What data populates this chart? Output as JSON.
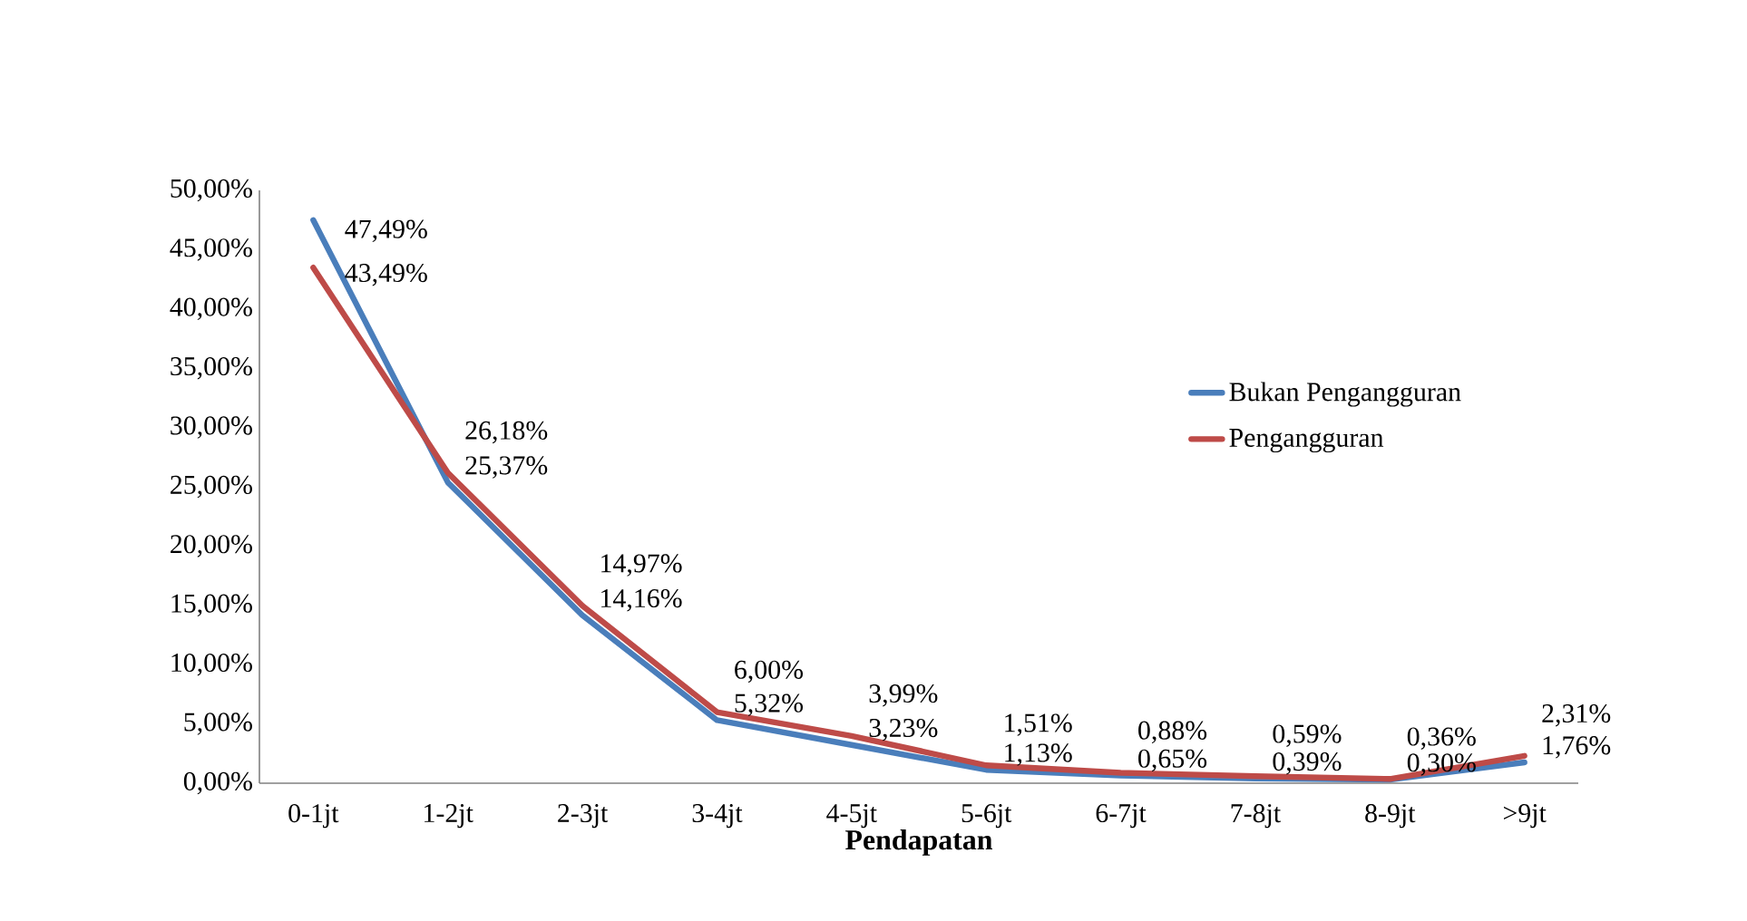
{
  "chart_data": {
    "type": "line",
    "xlabel": "Pendapatan",
    "categories": [
      "0-1jt",
      "1-2jt",
      "2-3jt",
      "3-4jt",
      "4-5jt",
      "5-6jt",
      "6-7jt",
      "7-8jt",
      "8-9jt",
      ">9jt"
    ],
    "series": [
      {
        "name": "Bukan Pengangguran",
        "color": "#4a7ebb",
        "values": [
          47.49,
          25.37,
          14.16,
          5.32,
          3.23,
          1.13,
          0.65,
          0.39,
          0.3,
          1.76
        ],
        "value_labels": [
          "47,49%",
          "25,37%",
          "14,16%",
          "5,32%",
          "3,23%",
          "1,13%",
          "0,65%",
          "0,39%",
          "0,30%",
          "1,76%"
        ]
      },
      {
        "name": "Pengangguran",
        "color": "#be4b48",
        "values": [
          43.49,
          26.18,
          14.97,
          6.0,
          3.99,
          1.51,
          0.88,
          0.59,
          0.36,
          2.31
        ],
        "value_labels": [
          "43,49%",
          "26,18%",
          "14,97%",
          "6,00%",
          "3,99%",
          "1,51%",
          "0,88%",
          "0,59%",
          "0,36%",
          "2,31%"
        ]
      }
    ],
    "ylim": [
      0,
      50
    ],
    "yticks": [
      {
        "value": 0,
        "label": "0,00%"
      },
      {
        "value": 5,
        "label": "5,00%"
      },
      {
        "value": 10,
        "label": "10,00%"
      },
      {
        "value": 15,
        "label": "15,00%"
      },
      {
        "value": 20,
        "label": "20,00%"
      },
      {
        "value": 25,
        "label": "25,00%"
      },
      {
        "value": 30,
        "label": "30,00%"
      },
      {
        "value": 35,
        "label": "35,00%"
      },
      {
        "value": 40,
        "label": "40,00%"
      },
      {
        "value": 45,
        "label": "45,00%"
      },
      {
        "value": 50,
        "label": "50,00%"
      }
    ],
    "grid": false,
    "legend": "right",
    "marker": "none",
    "line_style": "solid"
  }
}
